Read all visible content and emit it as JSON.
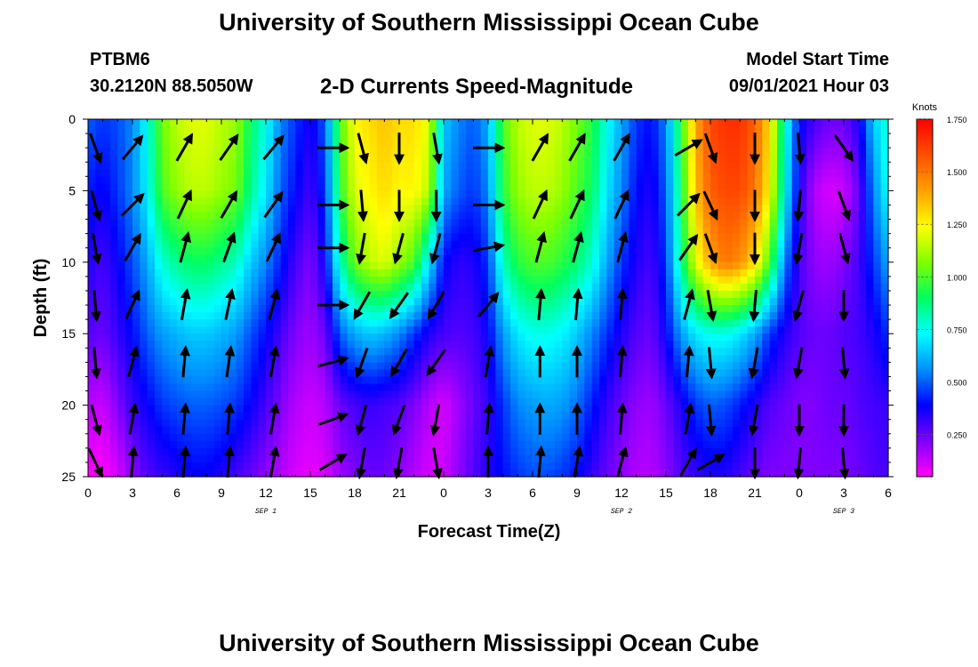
{
  "header": {
    "title": "University of Southern Mississippi Ocean Cube",
    "station_id": "PTBM6",
    "station_coords": "30.2120N  88.5050W",
    "plot_title": "2-D Currents Speed-Magnitude",
    "model_start_label": "Model Start Time",
    "model_start_value": "09/01/2021 Hour 03"
  },
  "footer": {
    "title": "University of Southern Mississippi Ocean Cube"
  },
  "chart_data": {
    "type": "heatmap",
    "title": "2-D Currents Speed-Magnitude",
    "xlabel": "Forecast Time(Z)",
    "ylabel": "Depth (ft)",
    "x_ticks": [
      "0",
      "3",
      "6",
      "9",
      "12",
      "15",
      "18",
      "21",
      "0",
      "3",
      "6",
      "9",
      "12",
      "15",
      "18",
      "21",
      "0",
      "3",
      "6"
    ],
    "date_labels": [
      {
        "label": "SEP 1",
        "hour": 12
      },
      {
        "label": "SEP 2",
        "hour": 36
      },
      {
        "label": "SEP 3",
        "hour": 51
      }
    ],
    "x_range_hours": [
      0,
      54
    ],
    "y_ticks": [
      0,
      5,
      10,
      15,
      20,
      25
    ],
    "ylim": [
      0,
      25
    ],
    "y_reversed": true,
    "colorbar": {
      "unit": "Knots",
      "range": [
        0.05,
        1.75
      ],
      "ticks": [
        "0.250",
        "0.500",
        "0.750",
        "1.000",
        "1.250",
        "1.500",
        "1.750"
      ],
      "tick_values": [
        0.25,
        0.5,
        0.75,
        1.0,
        1.25,
        1.5,
        1.75
      ],
      "colors": [
        "#ff00ff",
        "#8000ff",
        "#0000ff",
        "#0090ff",
        "#00ffff",
        "#00ff60",
        "#80ff00",
        "#ffff00",
        "#ffa000",
        "#ff5000",
        "#ff0000"
      ]
    },
    "speed_field": {
      "depths_ft": [
        0,
        5,
        10,
        15,
        20,
        25
      ],
      "hours": [
        0,
        1,
        2,
        3,
        4,
        5,
        6,
        7,
        8,
        9,
        10,
        11,
        12,
        13,
        14,
        15,
        16,
        17,
        18,
        19,
        20,
        21,
        22,
        23,
        24,
        25,
        26,
        27,
        28,
        29,
        30,
        31,
        32,
        33,
        34,
        35,
        36,
        37,
        38,
        39,
        40,
        41,
        42,
        43,
        44,
        45,
        46,
        47,
        48,
        49,
        50,
        51,
        52,
        53,
        54
      ],
      "values_knots": [
        [
          0.5,
          0.45,
          0.48,
          0.55,
          0.75,
          1.05,
          1.15,
          1.2,
          1.2,
          1.15,
          1.1,
          0.9,
          0.75,
          0.55,
          0.45,
          0.35,
          0.5,
          1.0,
          1.25,
          1.3,
          1.35,
          1.3,
          1.3,
          1.2,
          0.65,
          0.55,
          0.5,
          0.6,
          1.0,
          1.15,
          1.2,
          1.2,
          1.15,
          1.05,
          0.95,
          0.75,
          0.6,
          0.45,
          0.4,
          0.55,
          0.95,
          1.4,
          1.6,
          1.65,
          1.65,
          1.55,
          1.3,
          0.8,
          0.4,
          0.3,
          0.25,
          0.25,
          0.35,
          0.65,
          0.8
        ],
        [
          0.42,
          0.38,
          0.45,
          0.55,
          0.72,
          1.0,
          1.1,
          1.15,
          1.15,
          1.1,
          1.05,
          0.85,
          0.7,
          0.5,
          0.4,
          0.3,
          0.45,
          0.95,
          1.2,
          1.25,
          1.3,
          1.25,
          1.25,
          1.15,
          0.6,
          0.5,
          0.45,
          0.55,
          0.95,
          1.1,
          1.15,
          1.15,
          1.1,
          1.0,
          0.9,
          0.7,
          0.55,
          0.4,
          0.35,
          0.5,
          0.9,
          1.35,
          1.55,
          1.6,
          1.6,
          1.5,
          1.25,
          0.75,
          0.35,
          0.15,
          0.1,
          0.12,
          0.25,
          0.55,
          0.75
        ],
        [
          0.35,
          0.3,
          0.38,
          0.48,
          0.6,
          0.78,
          0.85,
          0.9,
          0.9,
          0.85,
          0.8,
          0.65,
          0.55,
          0.42,
          0.3,
          0.22,
          0.38,
          0.8,
          1.05,
          1.15,
          1.2,
          1.1,
          1.0,
          0.7,
          0.4,
          0.33,
          0.35,
          0.45,
          0.8,
          0.95,
          1.0,
          1.0,
          0.95,
          0.88,
          0.78,
          0.6,
          0.45,
          0.35,
          0.3,
          0.45,
          0.85,
          1.2,
          1.4,
          1.5,
          1.45,
          1.3,
          1.0,
          0.55,
          0.3,
          0.2,
          0.18,
          0.22,
          0.3,
          0.45,
          0.6
        ],
        [
          0.28,
          0.25,
          0.32,
          0.4,
          0.5,
          0.58,
          0.62,
          0.65,
          0.65,
          0.62,
          0.58,
          0.48,
          0.4,
          0.3,
          0.22,
          0.18,
          0.25,
          0.5,
          0.6,
          0.65,
          0.62,
          0.55,
          0.45,
          0.35,
          0.3,
          0.28,
          0.3,
          0.38,
          0.58,
          0.7,
          0.75,
          0.75,
          0.72,
          0.65,
          0.55,
          0.45,
          0.35,
          0.28,
          0.25,
          0.38,
          0.58,
          0.7,
          0.75,
          0.75,
          0.7,
          0.6,
          0.45,
          0.35,
          0.28,
          0.25,
          0.25,
          0.28,
          0.3,
          0.35,
          0.45
        ],
        [
          0.15,
          0.12,
          0.22,
          0.32,
          0.38,
          0.45,
          0.48,
          0.5,
          0.5,
          0.48,
          0.45,
          0.38,
          0.3,
          0.22,
          0.15,
          0.12,
          0.15,
          0.25,
          0.3,
          0.32,
          0.3,
          0.28,
          0.22,
          0.15,
          0.1,
          0.18,
          0.25,
          0.32,
          0.45,
          0.55,
          0.58,
          0.6,
          0.58,
          0.52,
          0.42,
          0.32,
          0.25,
          0.2,
          0.18,
          0.25,
          0.35,
          0.45,
          0.5,
          0.48,
          0.42,
          0.35,
          0.28,
          0.25,
          0.22,
          0.22,
          0.25,
          0.25,
          0.28,
          0.3,
          0.32
        ],
        [
          0.05,
          0.05,
          0.1,
          0.2,
          0.28,
          0.32,
          0.35,
          0.38,
          0.38,
          0.35,
          0.3,
          0.25,
          0.2,
          0.15,
          0.1,
          0.08,
          0.1,
          0.18,
          0.22,
          0.25,
          0.25,
          0.2,
          0.15,
          0.1,
          0.12,
          0.2,
          0.28,
          0.35,
          0.4,
          0.45,
          0.48,
          0.48,
          0.45,
          0.4,
          0.32,
          0.25,
          0.2,
          0.15,
          0.15,
          0.2,
          0.28,
          0.32,
          0.35,
          0.35,
          0.3,
          0.25,
          0.22,
          0.22,
          0.22,
          0.22,
          0.22,
          0.22,
          0.25,
          0.28,
          0.3
        ]
      ]
    },
    "vectors": {
      "hours": [
        0.5,
        3,
        6.5,
        9.5,
        12.5,
        16.5,
        18.5,
        21,
        23.5,
        27,
        30.5,
        33,
        36,
        40.5,
        42,
        45,
        48,
        51
      ],
      "depths_ft": [
        2,
        6,
        9,
        13,
        17,
        21,
        24
      ],
      "directions_deg": [
        [
          160,
          40,
          30,
          35,
          40,
          90,
          165,
          180,
          170,
          90,
          30,
          30,
          30,
          60,
          160,
          180,
          175,
          145
        ],
        [
          165,
          45,
          25,
          30,
          35,
          90,
          175,
          180,
          180,
          90,
          25,
          25,
          25,
          45,
          155,
          180,
          185,
          160
        ],
        [
          170,
          30,
          15,
          20,
          25,
          90,
          190,
          195,
          195,
          80,
          15,
          15,
          15,
          35,
          160,
          180,
          190,
          165
        ],
        [
          175,
          25,
          10,
          12,
          15,
          90,
          210,
          215,
          210,
          40,
          5,
          5,
          5,
          15,
          170,
          185,
          195,
          180
        ],
        [
          175,
          15,
          5,
          8,
          10,
          75,
          200,
          210,
          215,
          10,
          0,
          0,
          5,
          5,
          175,
          190,
          190,
          175
        ],
        [
          165,
          10,
          5,
          5,
          10,
          70,
          195,
          200,
          190,
          5,
          0,
          0,
          5,
          10,
          175,
          190,
          180,
          180
        ],
        [
          155,
          5,
          5,
          5,
          10,
          60,
          190,
          190,
          170,
          0,
          5,
          10,
          15,
          30,
          60,
          180,
          185,
          175
        ]
      ]
    }
  }
}
